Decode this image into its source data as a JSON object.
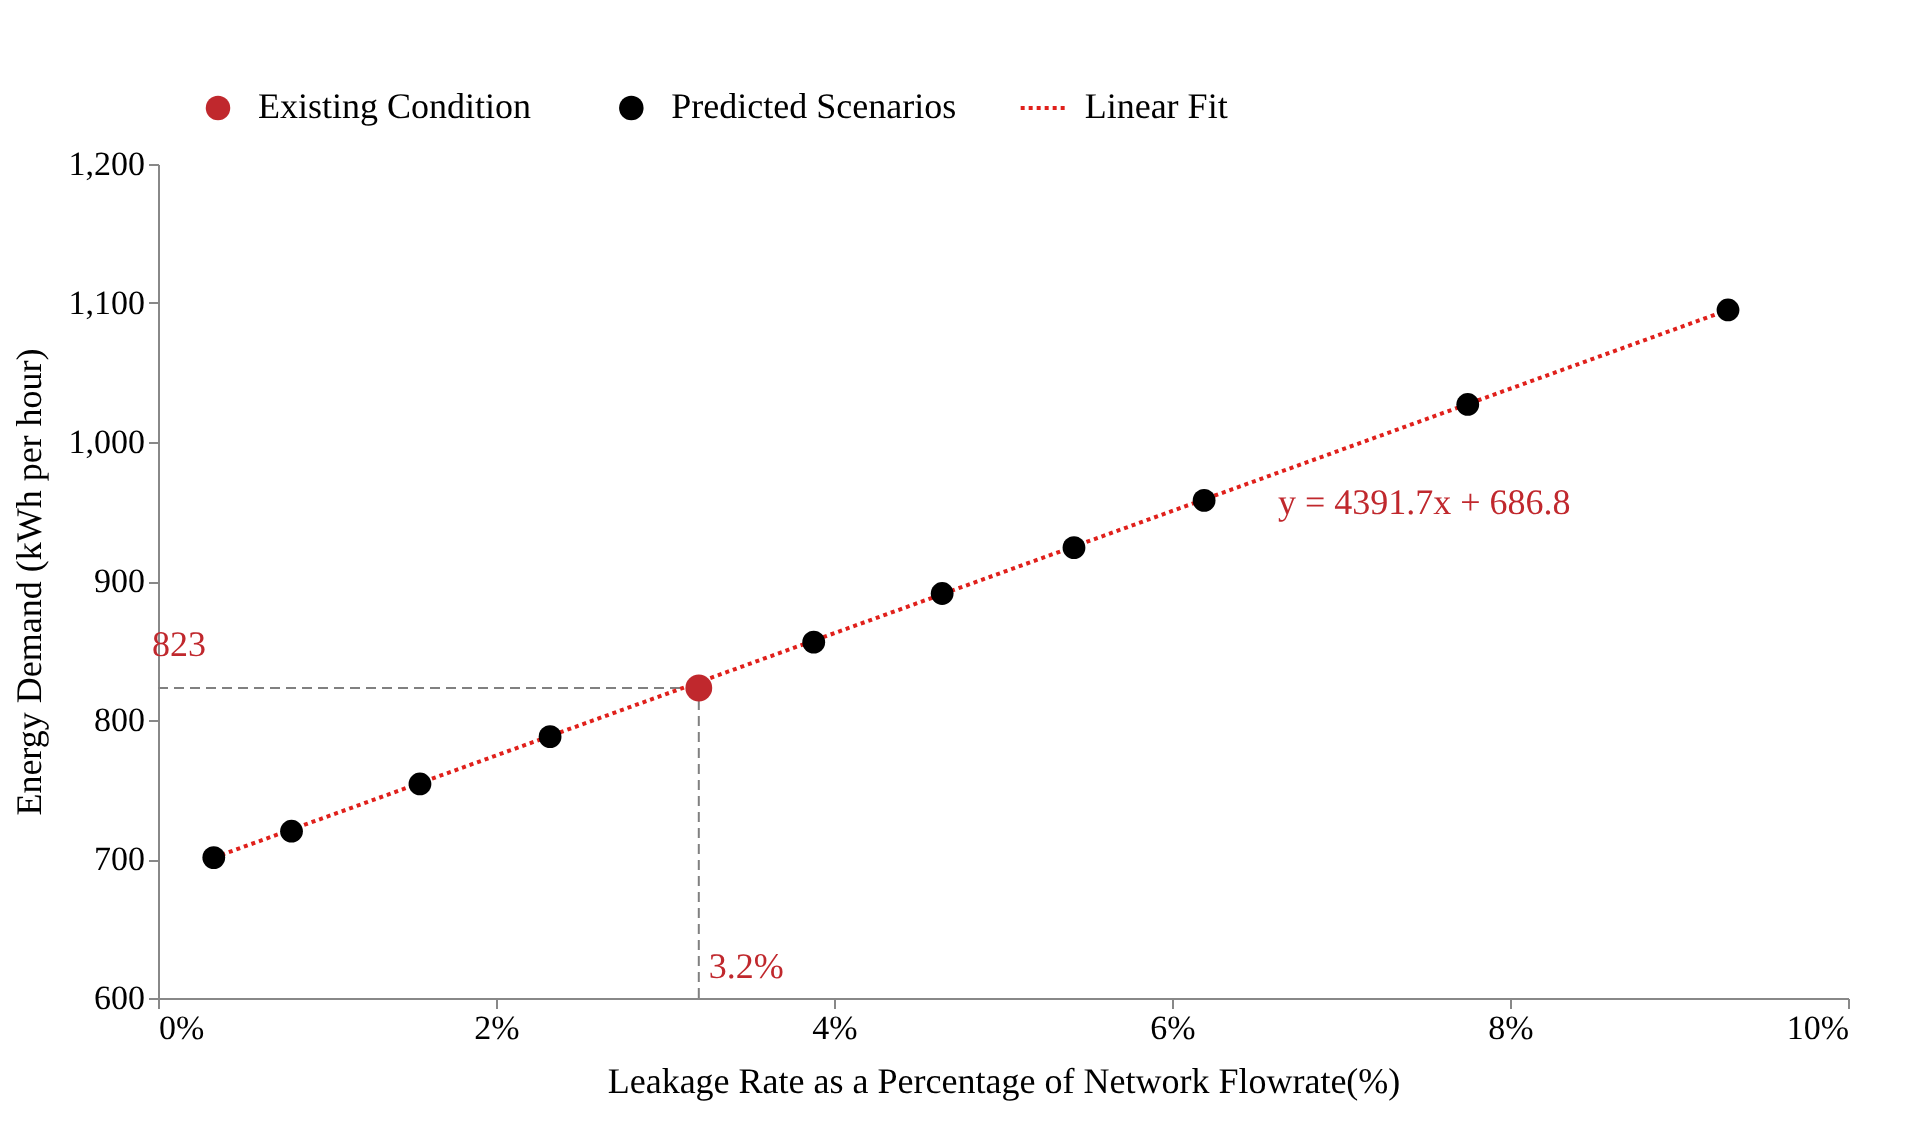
{
  "chart_data": {
    "type": "scatter",
    "xlabel": "Leakage Rate as a Percentage of Network Flowrate(%)",
    "ylabel": "Energy Demand (kWh per hour)",
    "xlim": [
      0,
      10
    ],
    "xticks": [
      {
        "value": 0,
        "label": "0%"
      },
      {
        "value": 2,
        "label": "2%"
      },
      {
        "value": 4,
        "label": "4%"
      },
      {
        "value": 6,
        "label": "6%"
      },
      {
        "value": 8,
        "label": "8%"
      },
      {
        "value": 10,
        "label": "10%"
      }
    ],
    "ylim": [
      600,
      1200
    ],
    "yticks": [
      {
        "value": 600,
        "label": "600"
      },
      {
        "value": 700,
        "label": "700"
      },
      {
        "value": 800,
        "label": "800"
      },
      {
        "value": 900,
        "label": "900"
      },
      {
        "value": 1000,
        "label": "1,000"
      },
      {
        "value": 1100,
        "label": "1,100"
      },
      {
        "value": 1200,
        "label": "1,200"
      }
    ],
    "grid": false,
    "legend": "top",
    "marker": "circle",
    "series": [
      {
        "name": "Existing Condition",
        "color": "#c0282d",
        "x": [
          3.2
        ],
        "values": [
          823
        ]
      },
      {
        "name": "Predicted Scenarios",
        "color": "#000000",
        "x": [
          0.33,
          0.79,
          1.55,
          2.32,
          3.88,
          4.64,
          5.42,
          6.19,
          7.75,
          9.29
        ],
        "values": [
          701,
          720,
          754,
          788,
          856,
          891,
          924,
          958,
          1027,
          1095
        ]
      },
      {
        "name": "Linear Fit",
        "type": "line",
        "marker": "none",
        "line_style": "dotted",
        "color": "#e0201b",
        "x": [
          0.33,
          9.29
        ],
        "values": [
          701,
          1095
        ]
      }
    ],
    "ref_lines": [
      {
        "axis": "y",
        "value": 823,
        "label": "823",
        "color": "#808080",
        "line_style": "dashed"
      },
      {
        "axis": "x",
        "value": 3.2,
        "label": "3.2%",
        "color": "#808080",
        "line_style": "dashed"
      }
    ],
    "annotations": [
      "y = 4391.7x + 686.8"
    ]
  }
}
